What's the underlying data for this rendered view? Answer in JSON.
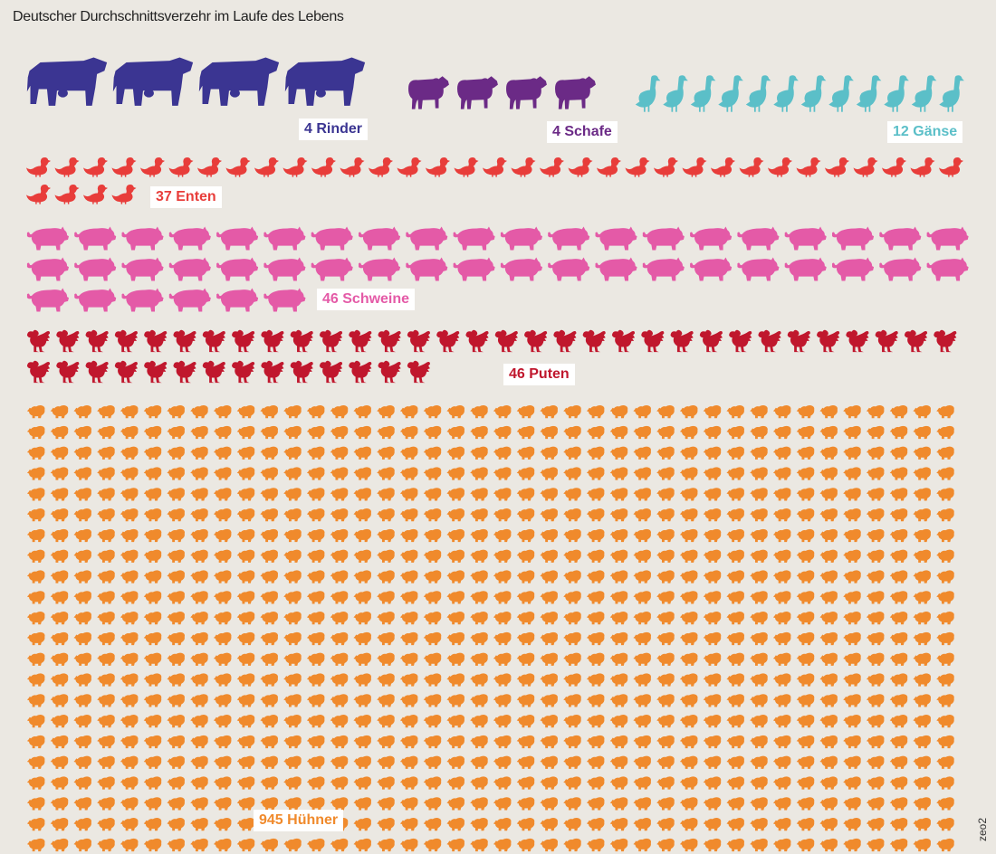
{
  "title": "Deutscher Durchschnittsverzehr im Laufe des Lebens",
  "credit": "zeo2",
  "chart_data": {
    "type": "pictogram",
    "title": "Deutscher Durchschnittsverzehr im Laufe des Lebens",
    "unit": "Tiere",
    "series": [
      {
        "key": "rinder",
        "label": "4 Rinder",
        "count": 4,
        "icon": "cow-icon",
        "color": "#3b3592"
      },
      {
        "key": "schafe",
        "label": "4 Schafe",
        "count": 4,
        "icon": "sheep-icon",
        "color": "#6b2a86"
      },
      {
        "key": "gaense",
        "label": "12 Gänse",
        "count": 12,
        "icon": "goose-icon",
        "color": "#5bbfc8"
      },
      {
        "key": "enten",
        "label": "37 Enten",
        "count": 37,
        "icon": "duck-icon",
        "color": "#e83d3a"
      },
      {
        "key": "schweine",
        "label": "46 Schweine",
        "count": 46,
        "icon": "pig-icon",
        "color": "#e45aa7"
      },
      {
        "key": "puten",
        "label": "46 Puten",
        "count": 46,
        "icon": "turkey-icon",
        "color": "#c0172d"
      },
      {
        "key": "huehner",
        "label": "945 Hühner",
        "count": 945,
        "icon": "chicken-icon",
        "color": "#f08a2c"
      }
    ]
  }
}
